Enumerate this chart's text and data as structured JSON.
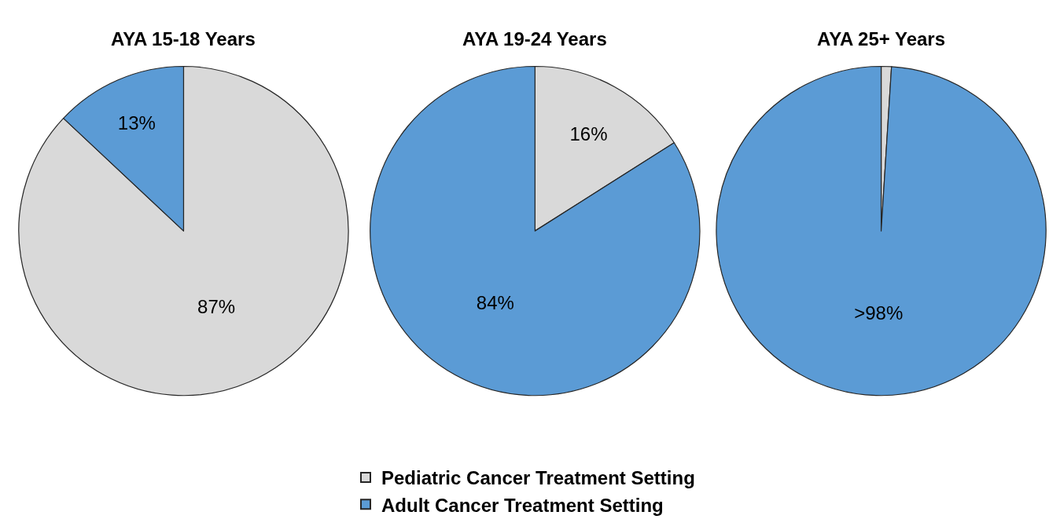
{
  "chart_data": [
    {
      "type": "pie",
      "title": "AYA 15-18 Years",
      "categories": [
        "Pediatric Cancer Treatment Setting",
        "Adult Cancer Treatment Setting"
      ],
      "values": [
        87,
        13
      ],
      "colors": [
        "#d9d9d9",
        "#5b9bd5"
      ],
      "value_labels": [
        "87%",
        "13%"
      ],
      "legend": "bottom"
    },
    {
      "type": "pie",
      "title": "AYA 19-24 Years",
      "categories": [
        null,
        null
      ],
      "values": [
        16,
        84
      ],
      "colors": [
        "#d9d9d9",
        "#5b9bd5"
      ],
      "value_labels": [
        "16%",
        "84%"
      ]
    },
    {
      "type": "pie",
      "title": "AYA 25+ Years",
      "categories": [
        null,
        null
      ],
      "values": [
        1,
        99
      ],
      "colors": [
        "#d9d9d9",
        "#5b9bd5"
      ],
      "value_labels": [
        null,
        ">98%"
      ]
    }
  ]
}
